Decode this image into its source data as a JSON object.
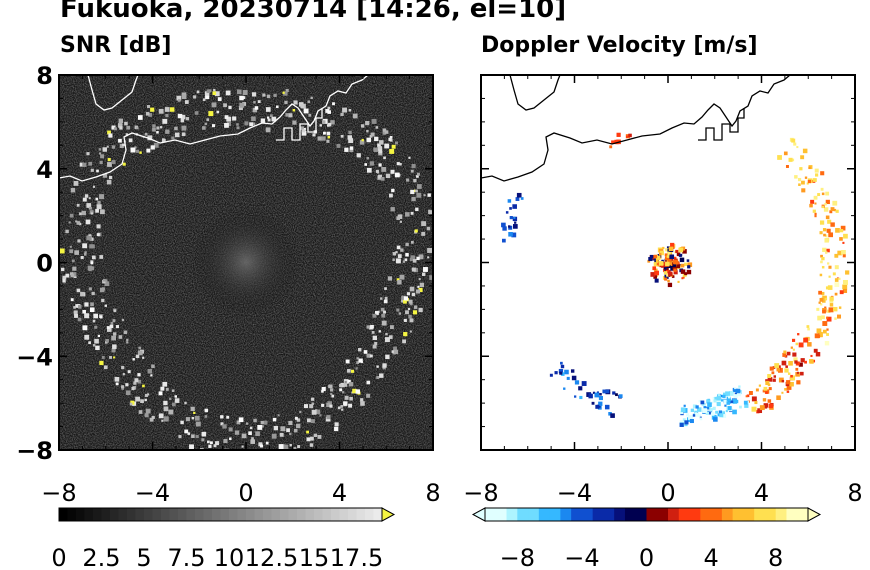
{
  "figure": {
    "title": "Fukuoka, 20230714 [14:26, el=10]"
  },
  "chart_data": [
    {
      "type": "heatmap",
      "title": "SNR [dB]",
      "xlim": [
        -8,
        8
      ],
      "ylim": [
        -8,
        8
      ],
      "x_ticks": [
        "−8",
        "−4",
        "0",
        "4",
        "8"
      ],
      "y_ticks": [
        "8",
        "4",
        "0",
        "−4",
        "−8"
      ],
      "colorbar": {
        "range": [
          0,
          19
        ],
        "extend": "max",
        "colormap": "greyscale",
        "ticks": [
          "0",
          "2.5",
          "5",
          "7.5",
          "10",
          "12.5",
          "15",
          "17.5"
        ],
        "extend_color": "#f5f542"
      },
      "features": "ring of strong echoes at about 6-8 km range, coastline overlay in upper left"
    },
    {
      "type": "heatmap",
      "title": "Doppler Velocity [m/s]",
      "xlim": [
        -8,
        8
      ],
      "ylim": [
        -8,
        8
      ],
      "x_ticks": [
        "−8",
        "−4",
        "0",
        "4",
        "8"
      ],
      "colorbar": {
        "range": [
          -10,
          10
        ],
        "extend": "both",
        "colormap": "cyan-blue-navy | red-orange-yellow",
        "ticks": [
          "−8",
          "−4",
          "0",
          "4",
          "8"
        ]
      },
      "features": "negative velocities (blue) in south-west and south, positive (orange/red) in east and south-east"
    }
  ]
}
